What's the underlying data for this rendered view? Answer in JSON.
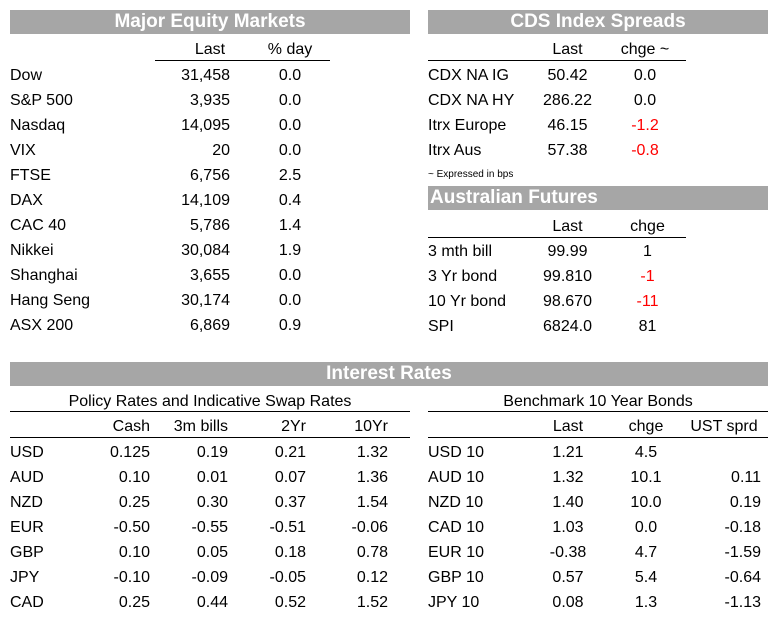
{
  "equity": {
    "title": "Major Equity Markets",
    "col_last": "Last",
    "col_change": "% day",
    "rows": [
      {
        "name": "Dow",
        "last": "31,458",
        "change": "0.0"
      },
      {
        "name": "S&P 500",
        "last": "3,935",
        "change": "0.0"
      },
      {
        "name": "Nasdaq",
        "last": "14,095",
        "change": "0.0"
      },
      {
        "name": "VIX",
        "last": "20",
        "change": "0.0"
      },
      {
        "name": "FTSE",
        "last": "6,756",
        "change": "2.5"
      },
      {
        "name": "DAX",
        "last": "14,109",
        "change": "0.4"
      },
      {
        "name": "CAC 40",
        "last": "5,786",
        "change": "1.4"
      },
      {
        "name": "Nikkei",
        "last": "30,084",
        "change": "1.9"
      },
      {
        "name": "Shanghai",
        "last": "3,655",
        "change": "0.0"
      },
      {
        "name": "Hang Seng",
        "last": "30,174",
        "change": "0.0"
      },
      {
        "name": "ASX 200",
        "last": "6,869",
        "change": "0.9"
      }
    ]
  },
  "cds": {
    "title": "CDS Index Spreads",
    "col_last": "Last",
    "col_change": "chge ~",
    "rows": [
      {
        "name": "CDX NA IG",
        "last": "50.42",
        "change": "0.0",
        "neg": false
      },
      {
        "name": "CDX NA HY",
        "last": "286.22",
        "change": "0.0",
        "neg": false
      },
      {
        "name": "Itrx Europe",
        "last": "46.15",
        "change": "-1.2",
        "neg": true
      },
      {
        "name": "Itrx Aus",
        "last": "57.38",
        "change": "-0.8",
        "neg": true
      }
    ],
    "footnote": "~ Expressed in bps"
  },
  "futures": {
    "title": "Australian Futures",
    "col_last": "Last",
    "col_change": "chge",
    "rows": [
      {
        "name": "3 mth bill",
        "last": "99.99",
        "change": "1",
        "neg": false
      },
      {
        "name": "3 Yr bond",
        "last": "99.810",
        "change": "-1",
        "neg": true
      },
      {
        "name": "10 Yr bond",
        "last": "98.670",
        "change": "-11",
        "neg": true
      },
      {
        "name": "SPI",
        "last": "6824.0",
        "change": "81",
        "neg": false
      }
    ]
  },
  "rates": {
    "title": "Interest Rates",
    "policy": {
      "subtitle": "Policy Rates and Indicative Swap Rates",
      "cols": [
        "Cash",
        "3m bills",
        "2Yr",
        "10Yr"
      ],
      "rows": [
        {
          "ccy": "USD",
          "v": [
            "0.125",
            "0.19",
            "0.21",
            "1.32"
          ]
        },
        {
          "ccy": "AUD",
          "v": [
            "0.10",
            "0.01",
            "0.07",
            "1.36"
          ]
        },
        {
          "ccy": "NZD",
          "v": [
            "0.25",
            "0.30",
            "0.37",
            "1.54"
          ]
        },
        {
          "ccy": "EUR",
          "v": [
            "-0.50",
            "-0.55",
            "-0.51",
            "-0.06"
          ]
        },
        {
          "ccy": "GBP",
          "v": [
            "0.10",
            "0.05",
            "0.18",
            "0.78"
          ]
        },
        {
          "ccy": "JPY",
          "v": [
            "-0.10",
            "-0.09",
            "-0.05",
            "0.12"
          ]
        },
        {
          "ccy": "CAD",
          "v": [
            "0.25",
            "0.44",
            "0.52",
            "1.52"
          ]
        }
      ]
    },
    "bonds": {
      "subtitle": "Benchmark 10 Year Bonds",
      "cols": [
        "Last",
        "chge",
        "UST sprd"
      ],
      "rows": [
        {
          "name": "USD 10",
          "v": [
            "1.21",
            "4.5",
            ""
          ]
        },
        {
          "name": "AUD 10",
          "v": [
            "1.32",
            "10.1",
            "0.11"
          ]
        },
        {
          "name": "NZD 10",
          "v": [
            "1.40",
            "10.0",
            "0.19"
          ]
        },
        {
          "name": "CAD 10",
          "v": [
            "1.03",
            "0.0",
            "-0.18"
          ]
        },
        {
          "name": "EUR 10",
          "v": [
            "-0.38",
            "4.7",
            "-1.59"
          ]
        },
        {
          "name": "GBP 10",
          "v": [
            "0.57",
            "5.4",
            "-0.64"
          ]
        },
        {
          "name": "JPY 10",
          "v": [
            "0.08",
            "1.3",
            "-1.13"
          ]
        }
      ]
    }
  },
  "colors": {
    "header_bg": "#a6a6a6",
    "negative": "#ff0000"
  }
}
